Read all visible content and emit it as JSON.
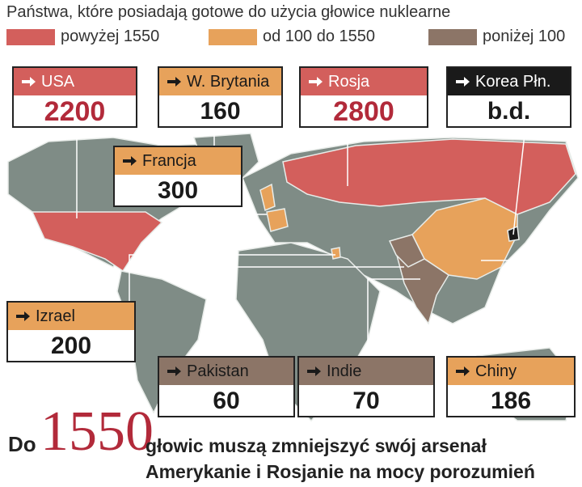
{
  "title": "Państwa, które posiadają gotowe do użycia głowice nuklearne",
  "legend": [
    "powyżej 1550",
    "od 100 do 1550",
    "poniżej 100"
  ],
  "countries": [
    {
      "name": "USA",
      "warheads": 2200
    },
    {
      "name": "W. Brytania",
      "warheads": 160
    },
    {
      "name": "Rosja",
      "warheads": 2800
    },
    {
      "name": "Korea Płn.",
      "warheads": "b.d."
    },
    {
      "name": "Francja",
      "warheads": 300
    },
    {
      "name": "Izrael",
      "warheads": 200
    },
    {
      "name": "Pakistan",
      "warheads": 60
    },
    {
      "name": "Indie",
      "warheads": 70
    },
    {
      "name": "Chiny",
      "warheads": 186
    }
  ],
  "footer": {
    "prefix": "Do",
    "number": 1550,
    "lines": [
      "głowic muszą zmniejszyć swój arsenał",
      "Amerykanie i Rosjanie na mocy porozumień"
    ]
  }
}
